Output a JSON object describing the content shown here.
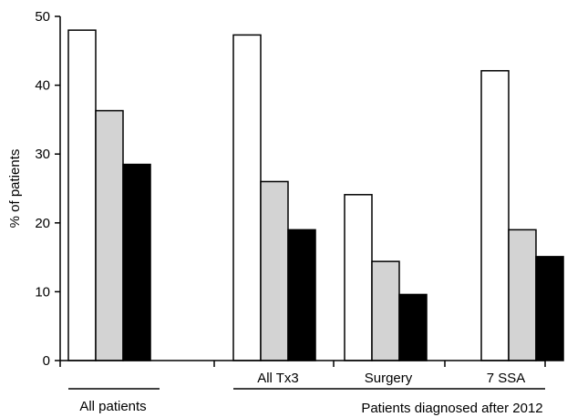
{
  "chart_data": {
    "type": "bar",
    "title": "",
    "xlabel": "",
    "ylabel": "% of patients",
    "ylim": [
      0,
      50
    ],
    "yticks": [
      0,
      10,
      20,
      30,
      40,
      50
    ],
    "grid": false,
    "legend": "none",
    "categories": [
      "All patients",
      "All Tx3",
      "Surgery",
      "7 SSA"
    ],
    "bracket_labels": [
      "All patients",
      "Patients diagnosed after 2012"
    ],
    "series": [
      {
        "color": "#ffffff",
        "values": [
          48,
          47.3,
          24.1,
          42.1
        ]
      },
      {
        "color": "#d3d3d3",
        "values": [
          36.3,
          26,
          14.4,
          19
        ]
      },
      {
        "color": "#000000",
        "values": [
          28.5,
          19,
          9.6,
          15.1
        ]
      }
    ]
  }
}
